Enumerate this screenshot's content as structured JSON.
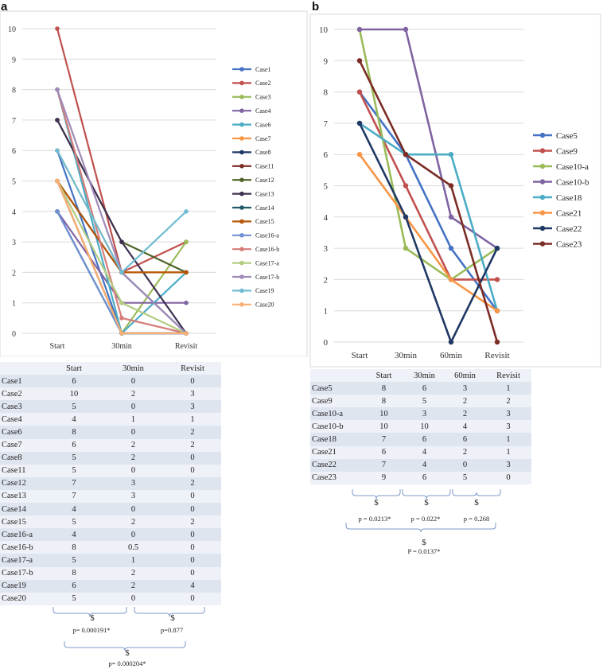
{
  "panel_a": {
    "letter": "a",
    "chart_data": {
      "type": "line",
      "categories": [
        "Start",
        "30min",
        "Revisit"
      ],
      "ylim": [
        0,
        10
      ],
      "yticks": [
        0,
        1,
        2,
        3,
        4,
        5,
        6,
        7,
        8,
        9,
        10
      ],
      "series": [
        {
          "name": "Case1",
          "color": "#4472c4",
          "values": [
            6,
            0,
            0
          ]
        },
        {
          "name": "Case2",
          "color": "#c0504d",
          "values": [
            10,
            2,
            3
          ]
        },
        {
          "name": "Case3",
          "color": "#9bbb59",
          "values": [
            5,
            0,
            3
          ]
        },
        {
          "name": "Case4",
          "color": "#8064a2",
          "values": [
            4,
            1,
            1
          ]
        },
        {
          "name": "Case6",
          "color": "#4bacc6",
          "values": [
            8,
            0,
            2
          ]
        },
        {
          "name": "Case7",
          "color": "#f79646",
          "values": [
            6,
            2,
            2
          ]
        },
        {
          "name": "Case8",
          "color": "#1f3864",
          "values": [
            5,
            2,
            0
          ]
        },
        {
          "name": "Case11",
          "color": "#7b2c24",
          "values": [
            5,
            0,
            0
          ]
        },
        {
          "name": "Case12",
          "color": "#4f6228",
          "values": [
            7,
            3,
            2
          ]
        },
        {
          "name": "Case13",
          "color": "#3f3151",
          "values": [
            7,
            3,
            0
          ]
        },
        {
          "name": "Case14",
          "color": "#215967",
          "values": [
            4,
            0,
            0
          ]
        },
        {
          "name": "Case15",
          "color": "#b65708",
          "values": [
            5,
            2,
            2
          ]
        },
        {
          "name": "Case16-a",
          "color": "#6f90d2",
          "values": [
            4,
            0,
            0
          ]
        },
        {
          "name": "Case16-b",
          "color": "#d67d7a",
          "values": [
            8,
            0.5,
            0
          ]
        },
        {
          "name": "Case17-a",
          "color": "#b3cc81",
          "values": [
            5,
            1,
            0
          ]
        },
        {
          "name": "Case17-b",
          "color": "#9f8ab8",
          "values": [
            8,
            2,
            0
          ]
        },
        {
          "name": "Case19",
          "color": "#6fbcd3",
          "values": [
            6,
            2,
            4
          ]
        },
        {
          "name": "Case20",
          "color": "#f9b074",
          "values": [
            5,
            0,
            0
          ]
        }
      ]
    },
    "table": {
      "headers": [
        "",
        "Start",
        "30min",
        "Revisit"
      ],
      "rows": [
        [
          "Case1",
          "6",
          "0",
          "0"
        ],
        [
          "Case2",
          "10",
          "2",
          "3"
        ],
        [
          "Case3",
          "5",
          "0",
          "3"
        ],
        [
          "Case4",
          "4",
          "1",
          "1"
        ],
        [
          "Case6",
          "8",
          "0",
          "2"
        ],
        [
          "Case7",
          "6",
          "2",
          "2"
        ],
        [
          "Case8",
          "5",
          "2",
          "0"
        ],
        [
          "Case11",
          "5",
          "0",
          "0"
        ],
        [
          "Case12",
          "7",
          "3",
          "2"
        ],
        [
          "Case13",
          "7",
          "3",
          "0"
        ],
        [
          "Case14",
          "4",
          "0",
          "0"
        ],
        [
          "Case15",
          "5",
          "2",
          "2"
        ],
        [
          "Case16-a",
          "4",
          "0",
          "0"
        ],
        [
          "Case16-b",
          "8",
          "0.5",
          "0"
        ],
        [
          "Case17-a",
          "5",
          "1",
          "0"
        ],
        [
          "Case17-b",
          "8",
          "2",
          "0"
        ],
        [
          "Case19",
          "6",
          "2",
          "4"
        ],
        [
          "Case20",
          "5",
          "0",
          "0"
        ]
      ]
    },
    "stats": {
      "symbol": "$",
      "p_start_30": "p= 0.000191*",
      "p_30_revisit": "p=0.877",
      "p_start_revisit": "p= 0.000204*"
    }
  },
  "panel_b": {
    "letter": "b",
    "chart_data": {
      "type": "line",
      "categories": [
        "Start",
        "30min",
        "60min",
        "Revisit"
      ],
      "ylim": [
        0,
        10
      ],
      "yticks": [
        0,
        1,
        2,
        3,
        4,
        5,
        6,
        7,
        8,
        9,
        10
      ],
      "series": [
        {
          "name": "Case5",
          "color": "#4472c4",
          "values": [
            8,
            6,
            3,
            1
          ]
        },
        {
          "name": "Case9",
          "color": "#c0504d",
          "values": [
            8,
            5,
            2,
            2
          ]
        },
        {
          "name": "Case10-a",
          "color": "#9bbb59",
          "values": [
            10,
            3,
            2,
            3
          ]
        },
        {
          "name": "Case10-b",
          "color": "#8064a2",
          "values": [
            10,
            10,
            4,
            3
          ]
        },
        {
          "name": "Case18",
          "color": "#4bacc6",
          "values": [
            7,
            6,
            6,
            1
          ]
        },
        {
          "name": "Case21",
          "color": "#f79646",
          "values": [
            6,
            4,
            2,
            1
          ]
        },
        {
          "name": "Case22",
          "color": "#1f3864",
          "values": [
            7,
            4,
            0,
            3
          ]
        },
        {
          "name": "Case23",
          "color": "#7b2c24",
          "values": [
            9,
            6,
            5,
            0
          ]
        }
      ]
    },
    "table": {
      "headers": [
        "",
        "Start",
        "30min",
        "60min",
        "Revisit"
      ],
      "rows": [
        [
          "Case5",
          "8",
          "6",
          "3",
          "1"
        ],
        [
          "Case9",
          "8",
          "5",
          "2",
          "2"
        ],
        [
          "Case10-a",
          "10",
          "3",
          "2",
          "3"
        ],
        [
          "Case10-b",
          "10",
          "10",
          "4",
          "3"
        ],
        [
          "Case18",
          "7",
          "6",
          "6",
          "1"
        ],
        [
          "Case21",
          "6",
          "4",
          "2",
          "1"
        ],
        [
          "Case22",
          "7",
          "4",
          "0",
          "3"
        ],
        [
          "Case23",
          "9",
          "6",
          "5",
          "0"
        ]
      ]
    },
    "stats": {
      "symbol": "$",
      "p_start_30": "p = 0.0213*",
      "p_30_60": "p = 0.022*",
      "p_60_revisit": "p = 0.268",
      "p_start_revisit": "P = 0.0137*"
    }
  }
}
